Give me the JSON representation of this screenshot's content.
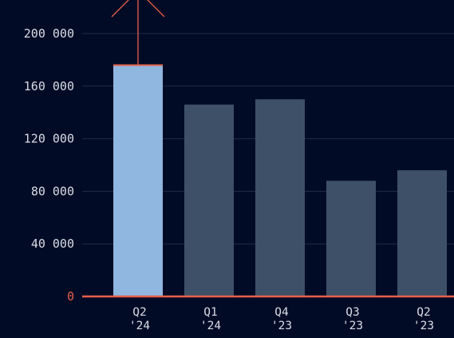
{
  "colors": {
    "background": "#020b26",
    "grid": "#1e2c47",
    "baseline": "#e8604a",
    "highlight_bar": "#8fb7e0",
    "bar": "#3e5068",
    "tick_text": "#d8dde6",
    "annotation": "#e8604a"
  },
  "chart_data": {
    "type": "bar",
    "categories": [
      [
        "Q2",
        "'24"
      ],
      [
        "Q1",
        "'24"
      ],
      [
        "Q4",
        "'23"
      ],
      [
        "Q3",
        "'23"
      ],
      [
        "Q2",
        "'23"
      ]
    ],
    "values": [
      176000,
      146000,
      150000,
      88000,
      96000
    ],
    "highlighted_index": 0,
    "ylim": [
      0,
      200000
    ],
    "yticks": [
      0,
      40000,
      80000,
      120000,
      160000,
      200000
    ],
    "ytick_labels": [
      "0",
      "40 000",
      "80 000",
      "120 000",
      "160 000",
      "200 000"
    ],
    "grid": true,
    "annotation": {
      "type": "arrow",
      "category_index": 0,
      "value": 176000
    }
  }
}
